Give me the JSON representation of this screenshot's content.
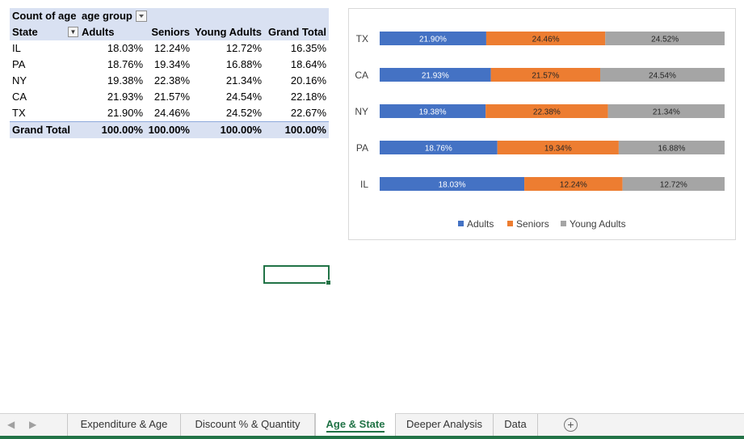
{
  "pivot": {
    "corner_label": "Count of age",
    "column_field": "age group",
    "row_field": "State",
    "columns": [
      "Adults",
      "Seniors",
      "Young Adults",
      "Grand Total"
    ],
    "rows": [
      {
        "state": "IL",
        "values": [
          "18.03%",
          "12.24%",
          "12.72%",
          "16.35%"
        ]
      },
      {
        "state": "PA",
        "values": [
          "18.76%",
          "19.34%",
          "16.88%",
          "18.64%"
        ]
      },
      {
        "state": "NY",
        "values": [
          "19.38%",
          "22.38%",
          "21.34%",
          "20.16%"
        ]
      },
      {
        "state": "CA",
        "values": [
          "21.93%",
          "21.57%",
          "24.54%",
          "22.18%"
        ]
      },
      {
        "state": "TX",
        "values": [
          "21.90%",
          "24.46%",
          "24.52%",
          "22.67%"
        ]
      }
    ],
    "total": {
      "label": "Grand Total",
      "values": [
        "100.00%",
        "100.00%",
        "100.00%",
        "100.00%"
      ]
    }
  },
  "chart_data": {
    "type": "bar",
    "orientation": "horizontal",
    "stacked": true,
    "categories": [
      "TX",
      "CA",
      "NY",
      "PA",
      "IL"
    ],
    "series": [
      {
        "name": "Adults",
        "color": "#4472c4",
        "values": [
          21.9,
          21.93,
          19.38,
          18.76,
          18.03
        ],
        "labels": [
          "21.90%",
          "21.93%",
          "19.38%",
          "18.76%",
          "18.03%"
        ]
      },
      {
        "name": "Seniors",
        "color": "#ed7d31",
        "values": [
          24.46,
          21.57,
          22.38,
          19.34,
          12.24
        ],
        "labels": [
          "24.46%",
          "21.57%",
          "22.38%",
          "19.34%",
          "12.24%"
        ]
      },
      {
        "name": "Young Adults",
        "color": "#a5a5a5",
        "values": [
          24.52,
          24.54,
          21.34,
          16.88,
          12.72
        ],
        "labels": [
          "24.52%",
          "24.54%",
          "21.34%",
          "16.88%",
          "12.72%"
        ]
      }
    ],
    "legend_position": "bottom",
    "grid": false
  },
  "sheet_tabs": {
    "tabs": [
      "Expenditure & Age",
      "Discount % & Quantity",
      "Age & State",
      "Deeper Analysis",
      "Data"
    ],
    "active": "Age & State",
    "add_icon": "plus-circle-icon"
  }
}
